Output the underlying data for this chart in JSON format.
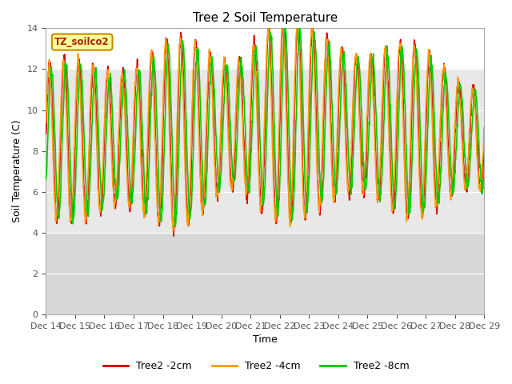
{
  "title": "Tree 2 Soil Temperature",
  "ylabel": "Soil Temperature (C)",
  "xlabel": "Time",
  "ylim": [
    0,
    14
  ],
  "yticks": [
    0,
    2,
    4,
    6,
    8,
    10,
    12,
    14
  ],
  "tz_label": "TZ_soilco2",
  "tz_fg": "#aa2200",
  "tz_bg": "#ffff99",
  "tz_border": "#cc8800",
  "legend_entries": [
    "Tree2 -2cm",
    "Tree2 -4cm",
    "Tree2 -8cm"
  ],
  "line_colors": [
    "#dd0000",
    "#ff9900",
    "#00cc00"
  ],
  "line_width": 1.2,
  "xticklabels": [
    "Dec 14",
    "Dec 15",
    "Dec 16",
    "Dec 17",
    "Dec 18",
    "Dec 19",
    "Dec 20",
    "Dec 21",
    "Dec 22",
    "Dec 23",
    "Dec 24",
    "Dec 25",
    "Dec 26",
    "Dec 27",
    "Dec 28",
    "Dec 29"
  ],
  "num_days": 15,
  "points_per_day": 96,
  "fig_bg": "#ffffff",
  "plot_bg": "#ffffff",
  "band_below4_color": "#e0e0e0",
  "band_4to12_color": "#ebebeb",
  "band_above12_color": "#ffffff"
}
